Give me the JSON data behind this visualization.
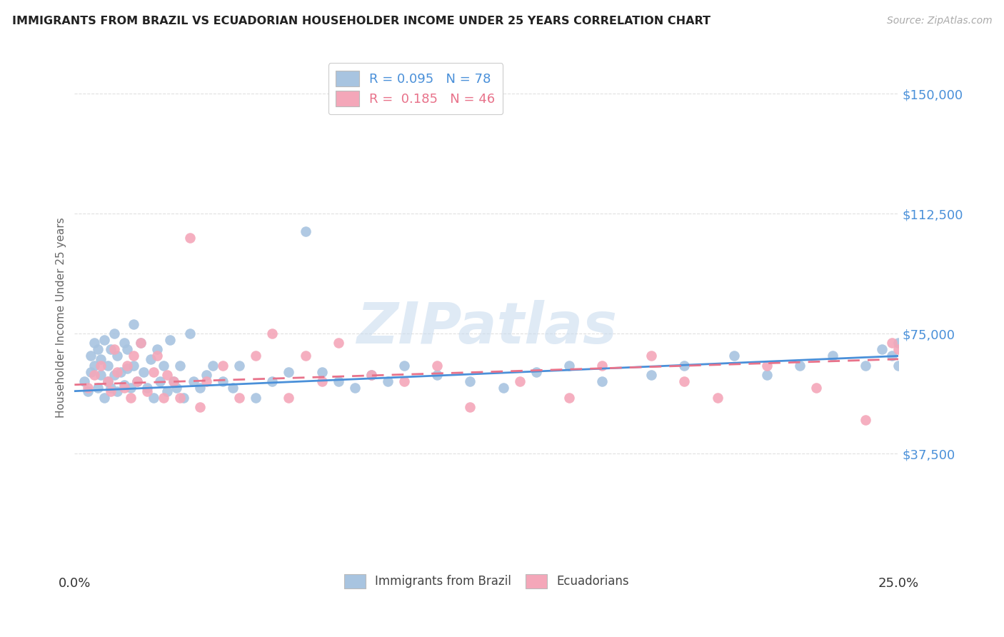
{
  "title": "IMMIGRANTS FROM BRAZIL VS ECUADORIAN HOUSEHOLDER INCOME UNDER 25 YEARS CORRELATION CHART",
  "source": "Source: ZipAtlas.com",
  "ylabel": "Householder Income Under 25 years",
  "xlim": [
    0.0,
    0.25
  ],
  "ylim": [
    0,
    160000
  ],
  "ytick_vals": [
    37500,
    75000,
    112500,
    150000
  ],
  "ytick_labels": [
    "$37,500",
    "$75,000",
    "$112,500",
    "$150,000"
  ],
  "color_brazil": "#a8c4e0",
  "color_ecuador": "#f4a7b9",
  "line_color_brazil": "#4a90d9",
  "line_color_ecuador": "#e8728a",
  "title_color": "#222222",
  "source_color": "#aaaaaa",
  "ytick_color": "#4a90d9",
  "grid_color": "#dddddd",
  "watermark_color": "#c5d9ee",
  "brazil_x": [
    0.003,
    0.004,
    0.005,
    0.005,
    0.006,
    0.006,
    0.007,
    0.007,
    0.008,
    0.008,
    0.009,
    0.009,
    0.01,
    0.01,
    0.011,
    0.011,
    0.012,
    0.012,
    0.013,
    0.013,
    0.014,
    0.015,
    0.015,
    0.016,
    0.016,
    0.017,
    0.018,
    0.018,
    0.019,
    0.02,
    0.021,
    0.022,
    0.023,
    0.024,
    0.025,
    0.026,
    0.027,
    0.028,
    0.029,
    0.03,
    0.031,
    0.032,
    0.033,
    0.035,
    0.036,
    0.038,
    0.04,
    0.042,
    0.045,
    0.048,
    0.05,
    0.055,
    0.06,
    0.065,
    0.07,
    0.075,
    0.08,
    0.085,
    0.09,
    0.095,
    0.1,
    0.11,
    0.12,
    0.13,
    0.14,
    0.15,
    0.16,
    0.175,
    0.185,
    0.2,
    0.21,
    0.22,
    0.23,
    0.24,
    0.245,
    0.248,
    0.25,
    0.25
  ],
  "brazil_y": [
    60000,
    57000,
    63000,
    68000,
    65000,
    72000,
    58000,
    70000,
    62000,
    67000,
    55000,
    73000,
    60000,
    65000,
    58000,
    70000,
    62000,
    75000,
    57000,
    68000,
    63000,
    59000,
    72000,
    64000,
    70000,
    58000,
    65000,
    78000,
    60000,
    72000,
    63000,
    58000,
    67000,
    55000,
    70000,
    60000,
    65000,
    57000,
    73000,
    60000,
    58000,
    65000,
    55000,
    75000,
    60000,
    58000,
    62000,
    65000,
    60000,
    58000,
    65000,
    55000,
    60000,
    63000,
    107000,
    63000,
    60000,
    58000,
    62000,
    60000,
    65000,
    62000,
    60000,
    58000,
    63000,
    65000,
    60000,
    62000,
    65000,
    68000,
    62000,
    65000,
    68000,
    65000,
    70000,
    68000,
    72000,
    65000
  ],
  "ecuador_x": [
    0.004,
    0.006,
    0.008,
    0.01,
    0.011,
    0.012,
    0.013,
    0.015,
    0.016,
    0.017,
    0.018,
    0.019,
    0.02,
    0.022,
    0.024,
    0.025,
    0.027,
    0.028,
    0.03,
    0.032,
    0.035,
    0.038,
    0.04,
    0.045,
    0.05,
    0.055,
    0.06,
    0.065,
    0.07,
    0.075,
    0.08,
    0.09,
    0.1,
    0.11,
    0.12,
    0.135,
    0.15,
    0.16,
    0.175,
    0.185,
    0.195,
    0.21,
    0.225,
    0.24,
    0.248,
    0.25
  ],
  "ecuador_y": [
    58000,
    62000,
    65000,
    60000,
    57000,
    70000,
    63000,
    58000,
    65000,
    55000,
    68000,
    60000,
    72000,
    57000,
    63000,
    68000,
    55000,
    62000,
    60000,
    55000,
    105000,
    52000,
    60000,
    65000,
    55000,
    68000,
    75000,
    55000,
    68000,
    60000,
    72000,
    62000,
    60000,
    65000,
    52000,
    60000,
    55000,
    65000,
    68000,
    60000,
    55000,
    65000,
    58000,
    48000,
    72000,
    70000
  ],
  "brazil_line_x": [
    0.0,
    0.25
  ],
  "brazil_line_y": [
    57000,
    68000
  ],
  "ecuador_line_x": [
    0.0,
    0.25
  ],
  "ecuador_line_y": [
    59000,
    67000
  ]
}
